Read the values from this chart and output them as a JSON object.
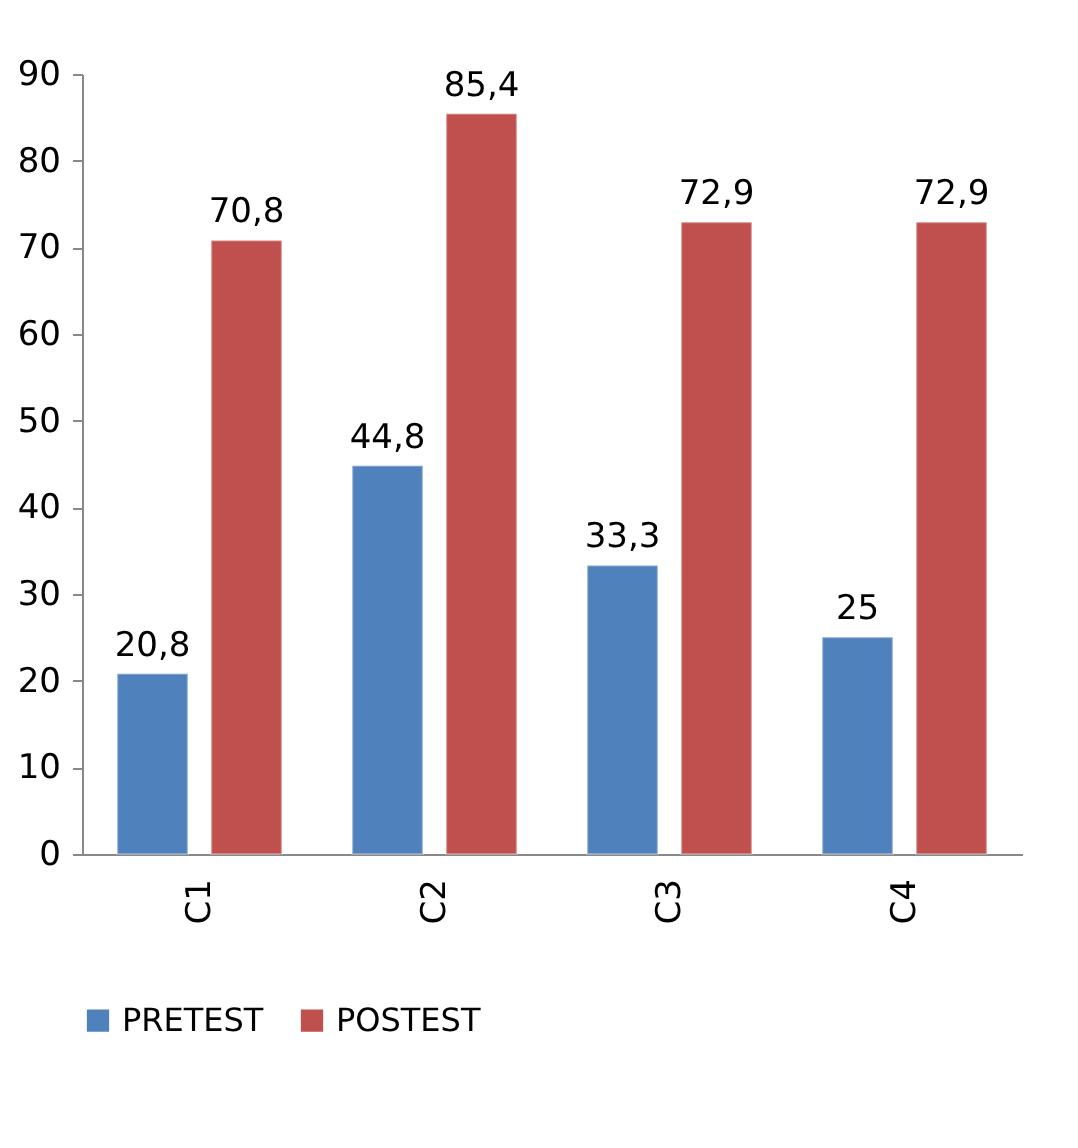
{
  "chart_data": {
    "type": "bar",
    "categories": [
      "C1",
      "C2",
      "C3",
      "C4"
    ],
    "series": [
      {
        "name": "PRETEST",
        "color": "#4f81bd",
        "values": [
          20.8,
          44.8,
          33.3,
          25
        ],
        "value_labels": [
          "20,8",
          "44,8",
          "33,3",
          "25"
        ]
      },
      {
        "name": "POSTEST",
        "color": "#c0504d",
        "values": [
          70.8,
          85.4,
          72.9,
          72.9
        ],
        "value_labels": [
          "70,8",
          "85,4",
          "72,9",
          "72,9"
        ]
      }
    ],
    "ylim": [
      0,
      90
    ],
    "yticks": [
      0,
      10,
      20,
      30,
      40,
      50,
      60,
      70,
      80,
      90
    ],
    "grid": false,
    "legend": "bottom"
  }
}
